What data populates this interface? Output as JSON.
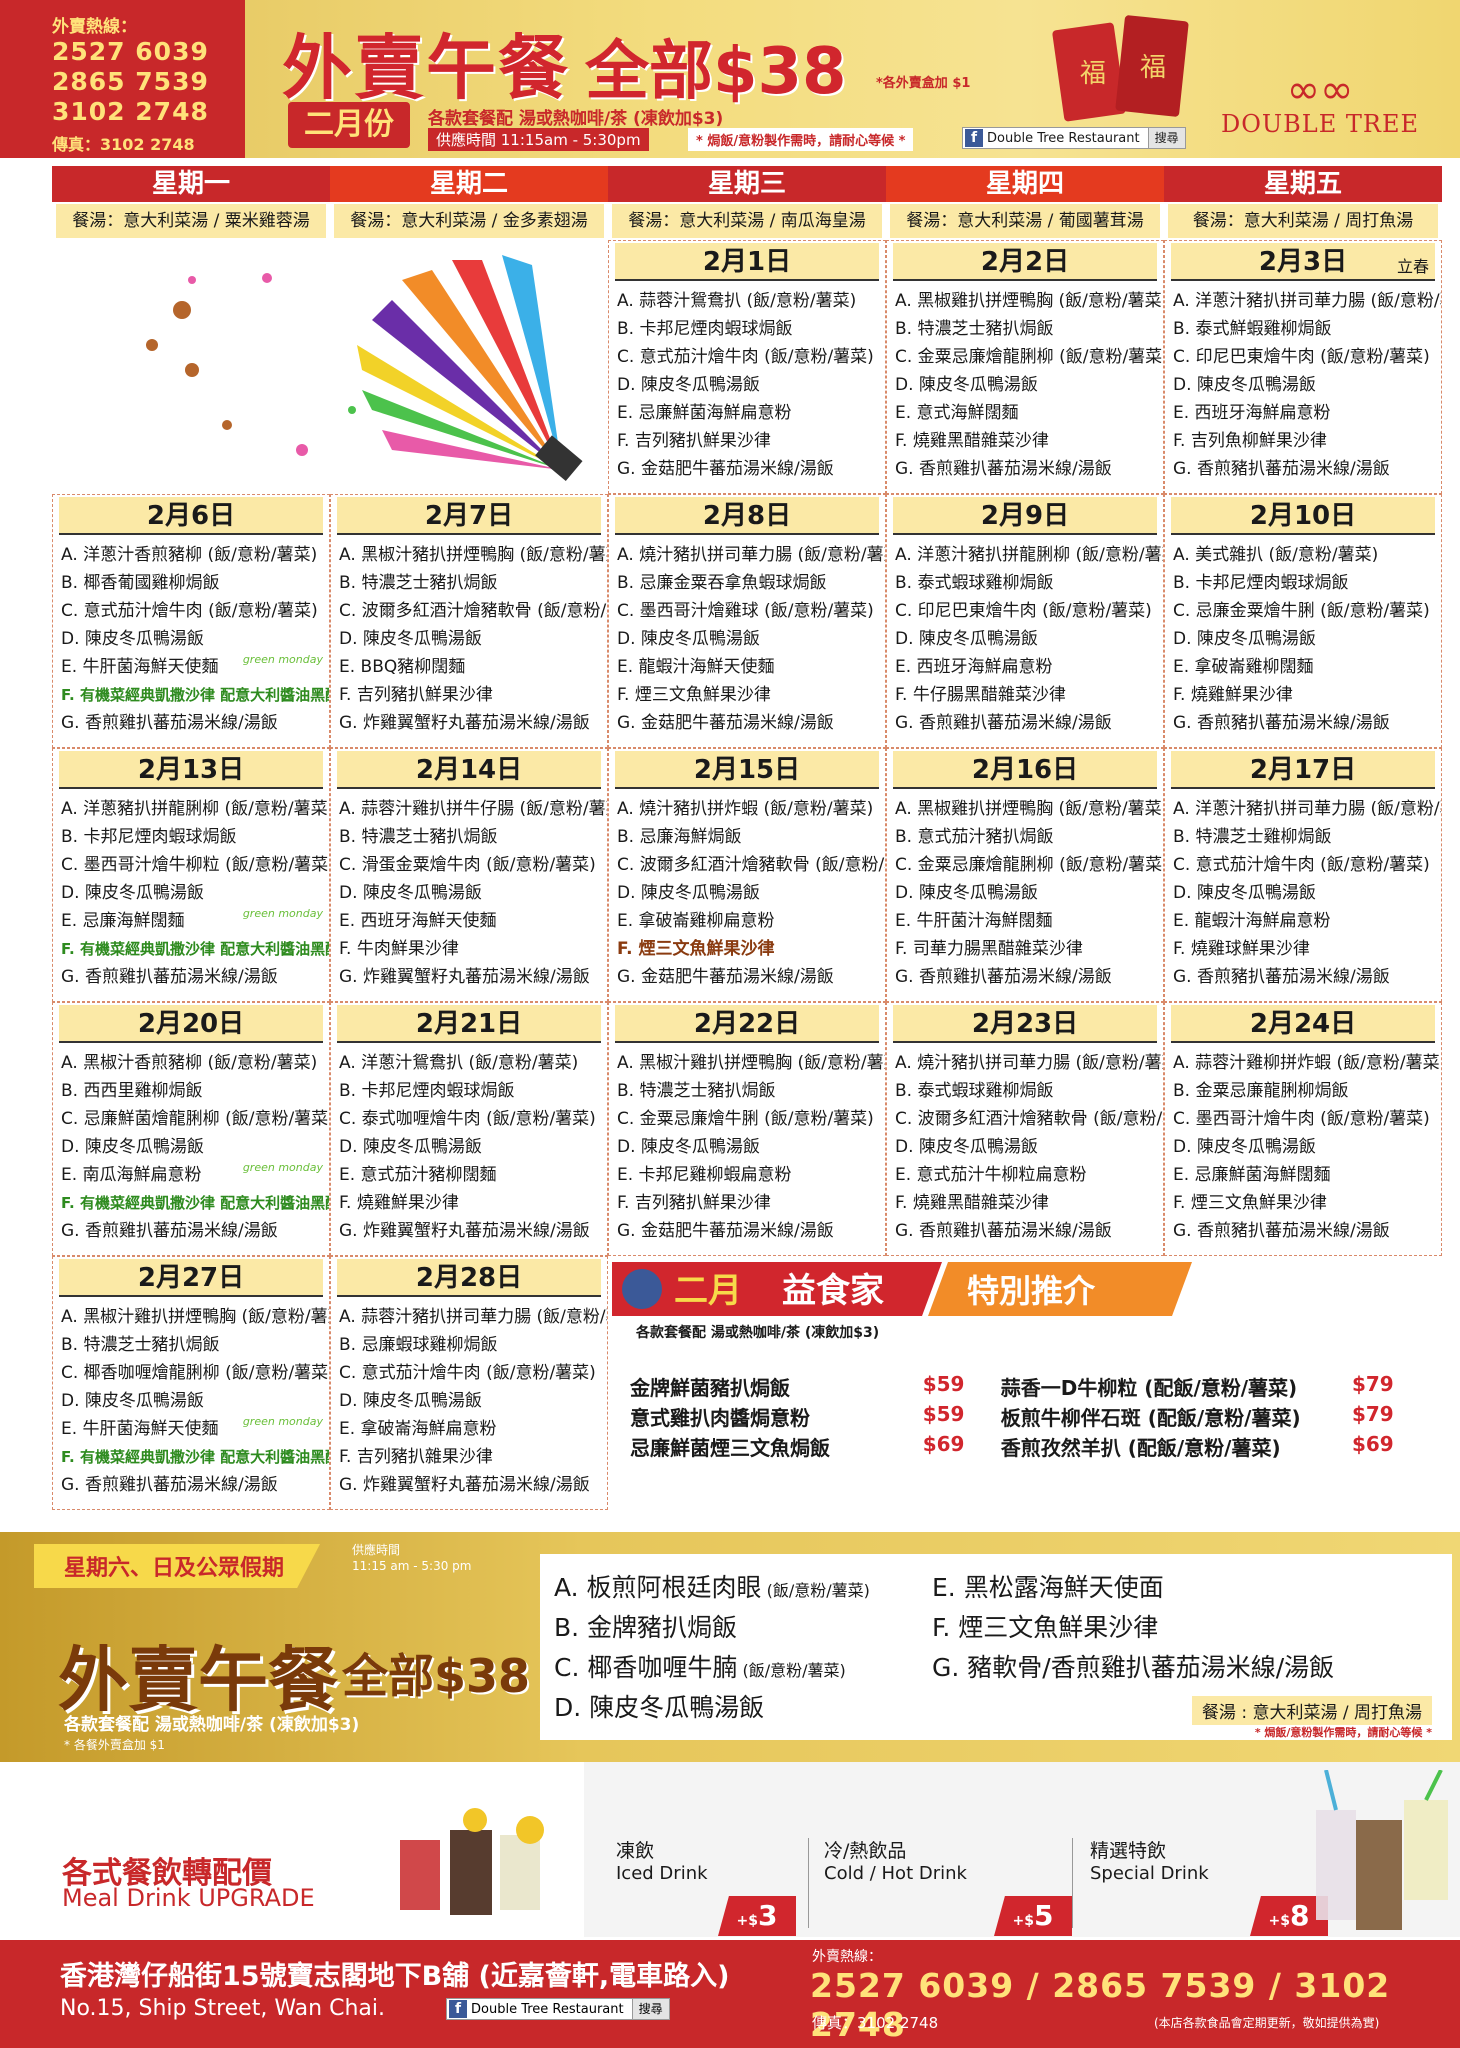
{
  "header": {
    "hotline_label": "外賣熱線：",
    "hotlines": [
      "2527 6039",
      "2865 7539",
      "3102 2748"
    ],
    "fax": "傳真：3102 2748",
    "title": "外賣午餐",
    "price": "全部$38",
    "addon_note": "*各外賣盒加 $1",
    "month": "二月份",
    "set_note": "各款套餐配 湯或熱咖啡/茶 (凍飲加$3)",
    "hours": "供應時間 11:15am - 5:30pm",
    "warning": "* 焗飯/意粉製作需時，請耐心等候 *",
    "facebook_name": "Double Tree Restaurant",
    "facebook_search": "搜尋",
    "brand": "DOUBLE TREE",
    "envelope_char": "福"
  },
  "days": [
    "星期一",
    "星期二",
    "星期三",
    "星期四",
    "星期五"
  ],
  "soups": [
    "餐湯：意大利菜湯 / 粟米雞蓉湯",
    "餐湯：意大利菜湯 / 金多素翅湯",
    "餐湯：意大利菜湯 / 南瓜海皇湯",
    "餐湯：意大利菜湯 / 葡國薯茸湯",
    "餐湯：意大利菜湯 / 周打魚湯"
  ],
  "green_monday": "green monday",
  "calendar": [
    {
      "date": "2月1日",
      "items": [
        "A. 蒜蓉汁鴛鴦扒 (飯/意粉/薯菜)",
        "B. 卡邦尼煙肉蝦球焗飯",
        "C. 意式茄汁燴牛肉 (飯/意粉/薯菜)",
        "D. 陳皮冬瓜鴨湯飯",
        "E. 忌廉鮮菌海鮮扁意粉",
        "F. 吉列豬扒鮮果沙律",
        "G. 金菇肥牛蕃茄湯米線/湯飯"
      ]
    },
    {
      "date": "2月2日",
      "items": [
        "A. 黑椒雞扒拼煙鴨胸 (飯/意粉/薯菜)",
        "B. 特濃芝士豬扒焗飯",
        "C. 金粟忌廉燴龍脷柳 (飯/意粉/薯菜)",
        "D. 陳皮冬瓜鴨湯飯",
        "E. 意式海鮮闊麵",
        "F. 燒雞黑醋雜菜沙律",
        "G. 香煎雞扒蕃茄湯米線/湯飯"
      ]
    },
    {
      "date": "2月3日",
      "term": "立春",
      "items": [
        "A. 洋蔥汁豬扒拼司華力腸 (飯/意粉/薯菜)",
        "B. 泰式鮮蝦雞柳焗飯",
        "C. 印尼巴東燴牛肉 (飯/意粉/薯菜)",
        "D. 陳皮冬瓜鴨湯飯",
        "E. 西班牙海鮮扁意粉",
        "F. 吉列魚柳鮮果沙律",
        "G. 香煎豬扒蕃茄湯米線/湯飯"
      ]
    },
    {
      "date": "2月6日",
      "green": true,
      "items": [
        "A. 洋蔥汁香煎豬柳 (飯/意粉/薯菜)",
        "B. 椰香葡國雞柳焗飯",
        "C. 意式茄汁燴牛肉 (飯/意粉/薯菜)",
        "D. 陳皮冬瓜鴨湯飯",
        "E. 牛肝菌海鮮天使麵",
        "F. 有機菜經典凱撒沙律 配意大利醬油黑醋汁或凱撒沙律醬",
        "G. 香煎雞扒蕃茄湯米線/湯飯"
      ]
    },
    {
      "date": "2月7日",
      "items": [
        "A. 黑椒汁豬扒拼煙鴨胸 (飯/意粉/薯菜)",
        "B. 特濃芝士豬扒焗飯",
        "C. 波爾多紅酒汁燴豬軟骨 (飯/意粉/薯菜)",
        "D. 陳皮冬瓜鴨湯飯",
        "E. BBQ豬柳闊麵",
        "F. 吉列豬扒鮮果沙律",
        "G. 炸雞翼蟹籽丸蕃茄湯米線/湯飯"
      ]
    },
    {
      "date": "2月8日",
      "items": [
        "A. 燒汁豬扒拼司華力腸 (飯/意粉/薯菜)",
        "B. 忌廉金粟吞拿魚蝦球焗飯",
        "C. 墨西哥汁燴雞球 (飯/意粉/薯菜)",
        "D. 陳皮冬瓜鴨湯飯",
        "E. 龍蝦汁海鮮天使麵",
        "F. 煙三文魚鮮果沙律",
        "G. 金菇肥牛蕃茄湯米線/湯飯"
      ]
    },
    {
      "date": "2月9日",
      "items": [
        "A. 洋蔥汁豬扒拼龍脷柳 (飯/意粉/薯菜)",
        "B. 泰式蝦球雞柳焗飯",
        "C. 印尼巴東燴牛肉 (飯/意粉/薯菜)",
        "D. 陳皮冬瓜鴨湯飯",
        "E. 西班牙海鮮扁意粉",
        "F. 牛仔腸黑醋雜菜沙律",
        "G. 香煎雞扒蕃茄湯米線/湯飯"
      ]
    },
    {
      "date": "2月10日",
      "items": [
        "A. 美式雜扒 (飯/意粉/薯菜)",
        "B. 卡邦尼煙肉蝦球焗飯",
        "C. 忌廉金粟燴牛脷 (飯/意粉/薯菜)",
        "D. 陳皮冬瓜鴨湯飯",
        "E. 拿破崙雞柳闊麵",
        "F. 燒雞鮮果沙律",
        "G. 香煎豬扒蕃茄湯米線/湯飯"
      ]
    },
    {
      "date": "2月13日",
      "green": true,
      "items": [
        "A. 洋蔥豬扒拼龍脷柳 (飯/意粉/薯菜)",
        "B. 卡邦尼煙肉蝦球焗飯",
        "C. 墨西哥汁燴牛柳粒 (飯/意粉/薯菜)",
        "D. 陳皮冬瓜鴨湯飯",
        "E. 忌廉海鮮闊麵",
        "F. 有機菜經典凱撒沙律 配意大利醬油黑醋汁或凱撒沙律醬",
        "G. 香煎雞扒蕃茄湯米線/湯飯"
      ]
    },
    {
      "date": "2月14日",
      "items": [
        "A. 蒜蓉汁雞扒拼牛仔腸 (飯/意粉/薯菜)",
        "B. 特濃芝士豬扒焗飯",
        "C. 滑蛋金粟燴牛肉 (飯/意粉/薯菜)",
        "D. 陳皮冬瓜鴨湯飯",
        "E. 西班牙海鮮天使麵",
        "F. 牛肉鮮果沙律",
        "G. 炸雞翼蟹籽丸蕃茄湯米線/湯飯"
      ]
    },
    {
      "date": "2月15日",
      "brownF": true,
      "items": [
        "A. 燒汁豬扒拼炸蝦 (飯/意粉/薯菜)",
        "B. 忌廉海鮮焗飯",
        "C. 波爾多紅酒汁燴豬軟骨 (飯/意粉/薯菜)",
        "D. 陳皮冬瓜鴨湯飯",
        "E. 拿破崙雞柳扁意粉",
        "F. 煙三文魚鮮果沙律",
        "G. 金菇肥牛蕃茄湯米線/湯飯"
      ]
    },
    {
      "date": "2月16日",
      "items": [
        "A. 黑椒雞扒拼煙鴨胸 (飯/意粉/薯菜)",
        "B. 意式茄汁豬扒焗飯",
        "C. 金粟忌廉燴龍脷柳 (飯/意粉/薯菜)",
        "D. 陳皮冬瓜鴨湯飯",
        "E. 牛肝菌汁海鮮闊麵",
        "F. 司華力腸黑醋雜菜沙律",
        "G. 香煎雞扒蕃茄湯米線/湯飯"
      ]
    },
    {
      "date": "2月17日",
      "items": [
        "A. 洋蔥汁豬扒拼司華力腸 (飯/意粉/薯菜)",
        "B. 特濃芝士雞柳焗飯",
        "C. 意式茄汁燴牛肉 (飯/意粉/薯菜)",
        "D. 陳皮冬瓜鴨湯飯",
        "E. 龍蝦汁海鮮扁意粉",
        "F. 燒雞球鮮果沙律",
        "G. 香煎豬扒蕃茄湯米線/湯飯"
      ]
    },
    {
      "date": "2月20日",
      "green": true,
      "items": [
        "A. 黑椒汁香煎豬柳 (飯/意粉/薯菜)",
        "B. 西西里雞柳焗飯",
        "C. 忌廉鮮菌燴龍脷柳 (飯/意粉/薯菜)",
        "D. 陳皮冬瓜鴨湯飯",
        "E. 南瓜海鮮扁意粉",
        "F. 有機菜經典凱撒沙律 配意大利醬油黑醋汁或凱撒沙律醬",
        "G. 香煎雞扒蕃茄湯米線/湯飯"
      ]
    },
    {
      "date": "2月21日",
      "items": [
        "A. 洋蔥汁鴛鴦扒 (飯/意粉/薯菜)",
        "B. 卡邦尼煙肉蝦球焗飯",
        "C. 泰式咖喱燴牛肉 (飯/意粉/薯菜)",
        "D. 陳皮冬瓜鴨湯飯",
        "E. 意式茄汁豬柳闊麵",
        "F. 燒雞鮮果沙律",
        "G. 炸雞翼蟹籽丸蕃茄湯米線/湯飯"
      ]
    },
    {
      "date": "2月22日",
      "items": [
        "A. 黑椒汁雞扒拼煙鴨胸 (飯/意粉/薯菜)",
        "B. 特濃芝士豬扒焗飯",
        "C. 金粟忌廉燴牛脷 (飯/意粉/薯菜)",
        "D. 陳皮冬瓜鴨湯飯",
        "E. 卡邦尼雞柳蝦扁意粉",
        "F. 吉列豬扒鮮果沙律",
        "G. 金菇肥牛蕃茄湯米線/湯飯"
      ]
    },
    {
      "date": "2月23日",
      "items": [
        "A. 燒汁豬扒拼司華力腸 (飯/意粉/薯菜)",
        "B. 泰式蝦球雞柳焗飯",
        "C. 波爾多紅酒汁燴豬軟骨 (飯/意粉/薯菜)",
        "D. 陳皮冬瓜鴨湯飯",
        "E. 意式茄汁牛柳粒扁意粉",
        "F. 燒雞黑醋雜菜沙律",
        "G. 香煎雞扒蕃茄湯米線/湯飯"
      ]
    },
    {
      "date": "2月24日",
      "items": [
        "A. 蒜蓉汁雞柳拼炸蝦 (飯/意粉/薯菜)",
        "B. 金粟忌廉龍脷柳焗飯",
        "C. 墨西哥汁燴牛肉 (飯/意粉/薯菜)",
        "D. 陳皮冬瓜鴨湯飯",
        "E. 忌廉鮮菌海鮮闊麵",
        "F. 煙三文魚鮮果沙律",
        "G. 香煎豬扒蕃茄湯米線/湯飯"
      ]
    },
    {
      "date": "2月27日",
      "green": true,
      "items": [
        "A. 黑椒汁雞扒拼煙鴨胸 (飯/意粉/薯菜)",
        "B. 特濃芝士豬扒焗飯",
        "C. 椰香咖喱燴龍脷柳 (飯/意粉/薯菜)",
        "D. 陳皮冬瓜鴨湯飯",
        "E. 牛肝菌海鮮天使麵",
        "F. 有機菜經典凱撒沙律 配意大利醬油黑醋汁或凱撒沙律醬",
        "G. 香煎雞扒蕃茄湯米線/湯飯"
      ]
    },
    {
      "date": "2月28日",
      "items": [
        "A. 蒜蓉汁豬扒拼司華力腸 (飯/意粉/薯菜)",
        "B. 忌廉蝦球雞柳焗飯",
        "C. 意式茄汁燴牛肉 (飯/意粉/薯菜)",
        "D. 陳皮冬瓜鴨湯飯",
        "E. 拿破崙海鮮扁意粉",
        "F. 吉列豬扒雜果沙律",
        "G. 炸雞翼蟹籽丸蕃茄湯米線/湯飯"
      ]
    }
  ],
  "recommend": {
    "banner_month": "二月",
    "banner_title": "益食家",
    "banner_special": "特別推介",
    "subtitle": "各款套餐配 湯或熱咖啡/茶 (凍飲加$3)",
    "items": [
      {
        "name": "金牌鮮菌豬扒焗飯",
        "price": "$59"
      },
      {
        "name": "蒜香一D牛柳粒 (配飯/意粉/薯菜)",
        "price": "$79"
      },
      {
        "name": "意式雞扒肉醬焗意粉",
        "price": "$59"
      },
      {
        "name": "板煎牛柳伴石斑 (配飯/意粉/薯菜)",
        "price": "$79"
      },
      {
        "name": "忌廉鮮菌煙三文魚焗飯",
        "price": "$69"
      },
      {
        "name": "香煎孜然羊扒 (配飯/意粉/薯菜)",
        "price": "$69"
      }
    ]
  },
  "weekend": {
    "tag": "星期六、日及公眾假期",
    "time_label": "供應時間",
    "time": "11:15 am - 5:30 pm",
    "title": "外賣午餐",
    "price": "全部$38",
    "set_note": "各款套餐配 湯或熱咖啡/茶 (凍飲加$3)",
    "box_note": "* 各餐外賣盒加 $1",
    "items": [
      {
        "main": "A. 板煎阿根廷肉眼",
        "tag": " (飯/意粉/薯菜)"
      },
      {
        "main": "B. 金牌豬扒焗飯",
        "tag": ""
      },
      {
        "main": "C. 椰香咖喱牛腩",
        "tag": " (飯/意粉/薯菜)"
      },
      {
        "main": "D. 陳皮冬瓜鴨湯飯",
        "tag": ""
      },
      {
        "main": "E. 黑松露海鮮天使面",
        "tag": ""
      },
      {
        "main": "F. 煙三文魚鮮果沙律",
        "tag": ""
      },
      {
        "main": "G. 豬軟骨/香煎雞扒蕃茄湯米線/湯飯",
        "tag": ""
      }
    ],
    "soup": "餐湯 : 意大利菜湯 / 周打魚湯",
    "warning": "* 焗飯/意粉製作需時，請耐心等候 *"
  },
  "drinks": {
    "title_zh": "各式餐飲轉配價",
    "title_en": "Meal Drink UPGRADE",
    "cols": [
      {
        "zh": "凍飲",
        "en": "Iced Drink",
        "price": "3"
      },
      {
        "zh": "冷/熱飲品",
        "en": "Cold / Hot Drink",
        "price": "5"
      },
      {
        "zh": "精選特飲",
        "en": "Special Drink",
        "price": "8"
      }
    ],
    "plus": "+$"
  },
  "footer": {
    "address": "香港灣仔船街15號寶志閣地下B舖 (近嘉薈軒,電車路入)",
    "address_en": "No.15, Ship Street, Wan Chai.",
    "hotline_label": "外賣熱線：",
    "hotlines": "2527 6039 / 2865 7539 / 3102 2748",
    "fax": "傳真：3102 2748",
    "note": "(本店各款食品會定期更新，敬如提供為實)"
  },
  "colors": {
    "red": "#c8282a",
    "gold": "#f0d670",
    "cream": "#fbe9a6",
    "green": "#2e8b1f"
  }
}
